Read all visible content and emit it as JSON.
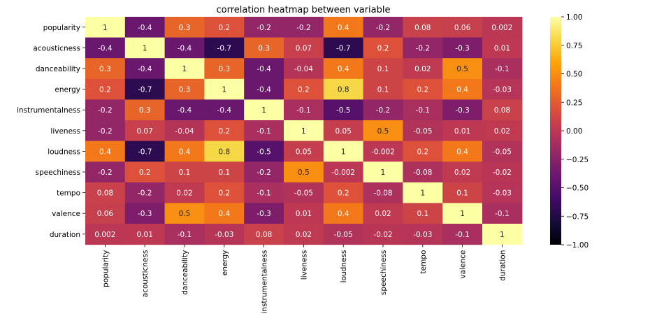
{
  "chart_data": {
    "type": "heatmap",
    "title": "correlation heatmap between variable",
    "xlabel": "",
    "ylabel": "",
    "rows": [
      "popularity",
      "acousticness",
      "danceability",
      "energy",
      "instrumentalness",
      "liveness",
      "loudness",
      "speechiness",
      "tempo",
      "valence",
      "duration"
    ],
    "columns": [
      "popularity",
      "acousticness",
      "danceability",
      "energy",
      "instrumentalness",
      "liveness",
      "loudness",
      "speechiness",
      "tempo",
      "valence",
      "duration"
    ],
    "values": [
      [
        1,
        -0.4,
        0.3,
        0.2,
        -0.2,
        -0.2,
        0.4,
        -0.2,
        0.08,
        0.06,
        0.002
      ],
      [
        -0.4,
        1,
        -0.4,
        -0.7,
        0.3,
        0.07,
        -0.7,
        0.2,
        -0.2,
        -0.3,
        0.01
      ],
      [
        0.3,
        -0.4,
        1,
        0.3,
        -0.4,
        -0.04,
        0.4,
        0.1,
        0.02,
        0.5,
        -0.1
      ],
      [
        0.2,
        -0.7,
        0.3,
        1,
        -0.4,
        0.2,
        0.8,
        0.1,
        0.2,
        0.4,
        -0.03
      ],
      [
        -0.2,
        0.3,
        -0.4,
        -0.4,
        1,
        -0.1,
        -0.5,
        -0.2,
        -0.1,
        -0.3,
        0.08
      ],
      [
        -0.2,
        0.07,
        -0.04,
        0.2,
        -0.1,
        1,
        0.05,
        0.5,
        -0.05,
        0.01,
        0.02
      ],
      [
        0.4,
        -0.7,
        0.4,
        0.8,
        -0.5,
        0.05,
        1,
        -0.002,
        0.2,
        0.4,
        -0.05
      ],
      [
        -0.2,
        0.2,
        0.1,
        0.1,
        -0.2,
        0.5,
        -0.002,
        1,
        -0.08,
        0.02,
        -0.02
      ],
      [
        0.08,
        -0.2,
        0.02,
        0.2,
        -0.1,
        -0.05,
        0.2,
        -0.08,
        1,
        0.1,
        -0.03
      ],
      [
        0.06,
        -0.3,
        0.5,
        0.4,
        -0.3,
        0.01,
        0.4,
        0.02,
        0.1,
        1,
        -0.1
      ],
      [
        0.002,
        0.01,
        -0.1,
        -0.03,
        0.08,
        0.02,
        -0.05,
        -0.02,
        -0.03,
        -0.1,
        1
      ]
    ],
    "value_range": [
      -1,
      1
    ],
    "colormap": "inferno",
    "colorbar": {
      "ticks": [
        1.0,
        0.75,
        0.5,
        0.25,
        0.0,
        -0.25,
        -0.5,
        -0.75,
        -1.0
      ],
      "tick_labels": [
        "1.00",
        "0.75",
        "0.50",
        "0.25",
        "0.00",
        "−0.25",
        "−0.50",
        "−0.75",
        "−1.00"
      ]
    },
    "annotated": true,
    "grid": false
  }
}
